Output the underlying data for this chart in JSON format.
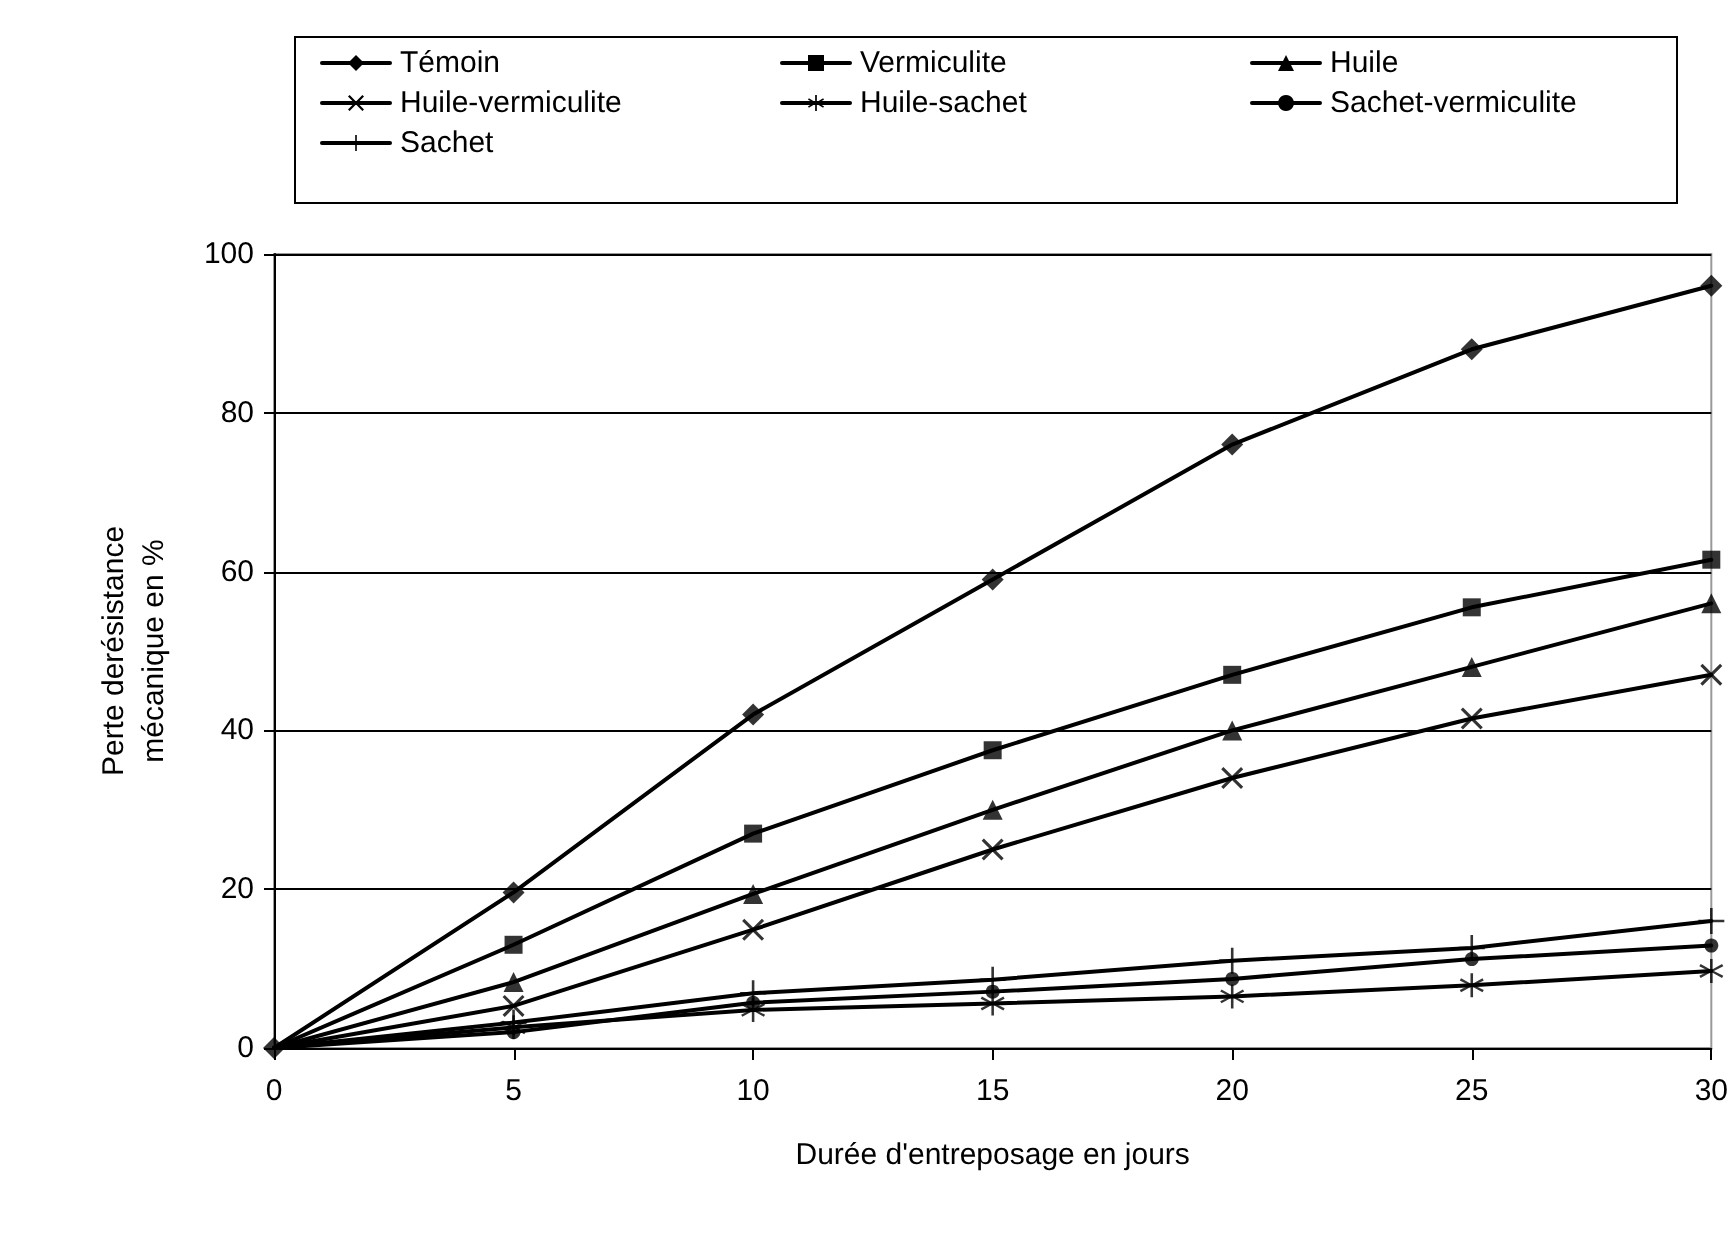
{
  "chart_data": {
    "type": "line",
    "xlabel": "Durée d'entreposage en jours",
    "ylabel": "Perte derésistance\nmécanique en %",
    "x": [
      0,
      5,
      10,
      15,
      20,
      25,
      30
    ],
    "xlim": [
      0,
      30
    ],
    "xticks": [
      0,
      5,
      10,
      15,
      20,
      25,
      30
    ],
    "ylim": [
      0,
      100
    ],
    "yticks": [
      0,
      20,
      40,
      60,
      80,
      100
    ],
    "grid": "y",
    "legend": "top",
    "line_style": "solid",
    "series": [
      {
        "name": "Témoin",
        "color": "#000000",
        "marker": "diamond",
        "values": [
          0,
          19.6,
          42,
          59,
          76,
          88,
          96
        ]
      },
      {
        "name": "Vermiculite",
        "color": "#000000",
        "marker": "square",
        "values": [
          0,
          13,
          27,
          37.5,
          47,
          55.5,
          61.5
        ]
      },
      {
        "name": "Huile",
        "color": "#000000",
        "marker": "triangle",
        "values": [
          0,
          8.3,
          19.4,
          30,
          40,
          48,
          56
        ]
      },
      {
        "name": "Huile-vermiculite",
        "color": "#000000",
        "marker": "cross",
        "values": [
          0,
          5.3,
          14.9,
          25,
          34,
          41.5,
          47
        ]
      },
      {
        "name": "Huile-sachet",
        "color": "#000000",
        "marker": "star",
        "values": [
          0,
          2.6,
          4.8,
          5.6,
          6.5,
          7.9,
          9.7
        ]
      },
      {
        "name": "Sachet-vermiculite",
        "color": "#000000",
        "marker": "circle",
        "values": [
          0,
          2,
          5.7,
          7.1,
          8.7,
          11.2,
          12.9
        ]
      },
      {
        "name": "Sachet",
        "color": "#000000",
        "marker": "plus",
        "values": [
          0,
          3.2,
          6.9,
          8.6,
          11,
          12.6,
          16
        ]
      }
    ]
  }
}
